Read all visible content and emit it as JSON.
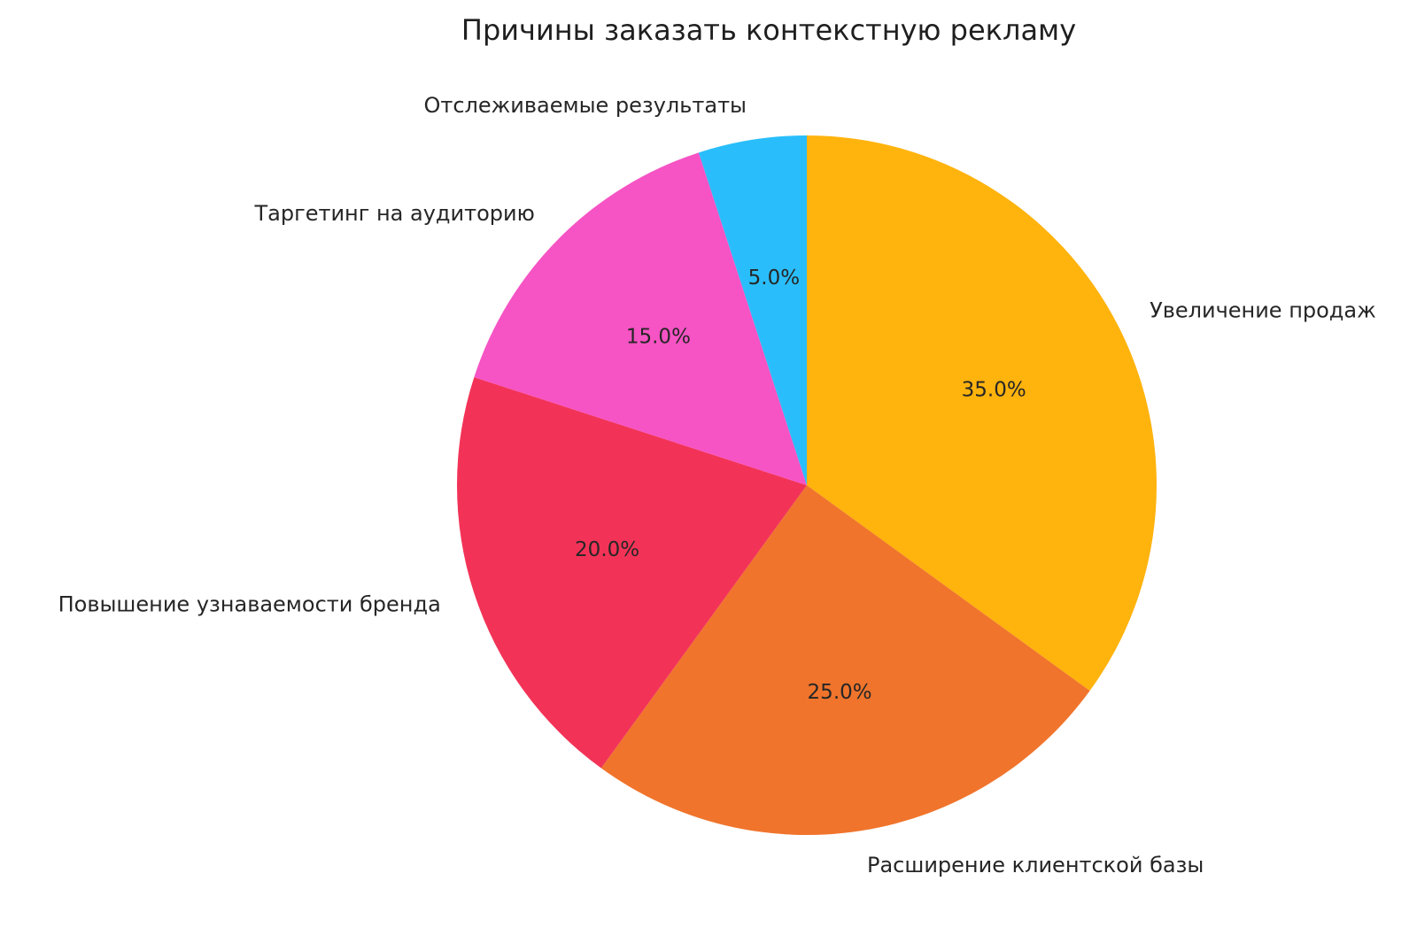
{
  "title": "Причины заказать контекстную рекламу",
  "chart_data": {
    "type": "pie",
    "title": "Причины заказать контекстную рекламу",
    "categories": [
      "Увеличение продаж",
      "Расширение клиентской базы",
      "Повышение узнаваемости бренда",
      "Таргетинг на аудиторию",
      "Отслеживаемые результаты"
    ],
    "values": [
      35.0,
      25.0,
      20.0,
      15.0,
      5.0
    ],
    "percent_labels": [
      "35.0%",
      "25.0%",
      "20.0%",
      "15.0%",
      "5.0%"
    ],
    "colors": [
      "#FFB30D",
      "#F0742C",
      "#F23357",
      "#F653C4",
      "#29BEFB"
    ],
    "start_angle_deg": 90,
    "direction": "clockwise",
    "legend": "none",
    "label_position": "outside",
    "pct_distance": 0.6,
    "label_distance": 1.1,
    "text_color": "#262626",
    "background": "#FFFFFF"
  }
}
